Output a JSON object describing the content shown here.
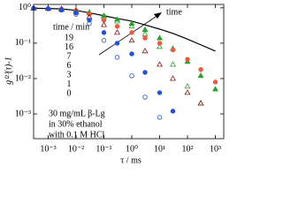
{
  "chart_data": {
    "type": "scatter",
    "x_label": "τ / ms",
    "y_label": "g⁽²⁾(τ)-1",
    "x": [
      0.0003,
      0.001,
      0.003,
      0.01,
      0.03,
      0.1,
      0.3,
      1,
      3,
      10,
      30,
      100,
      300,
      1000
    ],
    "series": [
      {
        "name": "19",
        "color": "#000000",
        "marker": "line",
        "filled": false,
        "values": [
          0.97,
          0.96,
          0.93,
          0.85,
          0.72,
          0.6,
          0.5,
          0.42,
          0.33,
          0.25,
          0.19,
          0.13,
          0.09,
          0.06
        ]
      },
      {
        "name": "16",
        "color": "#2ca02c",
        "marker": "triangle",
        "filled": true,
        "values": [
          0.97,
          0.96,
          0.94,
          0.88,
          0.75,
          0.6,
          0.47,
          0.36,
          0.24,
          0.14,
          0.07,
          0.03,
          0.012,
          0.005
        ]
      },
      {
        "name": "7",
        "color": "#2ca02c",
        "marker": "triangle",
        "filled": false,
        "values": [
          0.97,
          0.96,
          0.93,
          0.86,
          0.72,
          0.56,
          0.42,
          0.3,
          0.18,
          0.08,
          0.025,
          0.006,
          0.002,
          null
        ]
      },
      {
        "name": "6",
        "color": "#f05a3c",
        "marker": "circle",
        "filled": true,
        "values": [
          0.97,
          0.96,
          0.93,
          0.84,
          0.66,
          0.45,
          0.3,
          0.2,
          0.14,
          0.1,
          0.065,
          0.035,
          0.018,
          0.008
        ]
      },
      {
        "name": "3",
        "color": "#8b1a1a",
        "marker": "triangle",
        "filled": false,
        "values": [
          0.97,
          0.95,
          0.9,
          0.78,
          0.55,
          0.33,
          0.2,
          0.12,
          0.06,
          0.025,
          0.01,
          0.004,
          0.002,
          null
        ]
      },
      {
        "name": "1",
        "color": "#1f4fe0",
        "marker": "circle",
        "filled": true,
        "values": [
          0.97,
          0.95,
          0.88,
          0.72,
          0.45,
          0.2,
          0.1,
          0.05,
          0.015,
          0.004,
          0.0012,
          null,
          null,
          null
        ]
      },
      {
        "name": "0",
        "color": "#1f4fe0",
        "marker": "circle",
        "filled": false,
        "values": [
          0.97,
          0.94,
          0.86,
          0.66,
          0.36,
          0.12,
          0.04,
          0.012,
          0.003,
          0.0008,
          null,
          null,
          null,
          null
        ]
      }
    ],
    "xlog": true,
    "ylog": true,
    "xlim": [
      0.0003,
      2000
    ],
    "ylim": [
      0.0002,
      1.25
    ],
    "xticks": [
      {
        "value": 0.001,
        "label": "10⁻³"
      },
      {
        "value": 0.01,
        "label": "10⁻²"
      },
      {
        "value": 0.1,
        "label": "10⁻¹"
      },
      {
        "value": 1,
        "label": "10⁰"
      },
      {
        "value": 10,
        "label": "10¹"
      },
      {
        "value": 100,
        "label": "10²"
      },
      {
        "value": 1000,
        "label": "10³"
      }
    ],
    "yticks": [
      {
        "value": 0.001,
        "label": "10⁻³"
      },
      {
        "value": 0.01,
        "label": "10⁻²"
      },
      {
        "value": 0.1,
        "label": "10⁻¹"
      },
      {
        "value": 1,
        "label": "10⁰"
      }
    ],
    "legend_title": "time / min",
    "arrow_label": "time",
    "annotation": [
      "30 mg/mL β-Lg",
      "in 30% ethanol",
      "with 0.1 M HCl"
    ]
  }
}
